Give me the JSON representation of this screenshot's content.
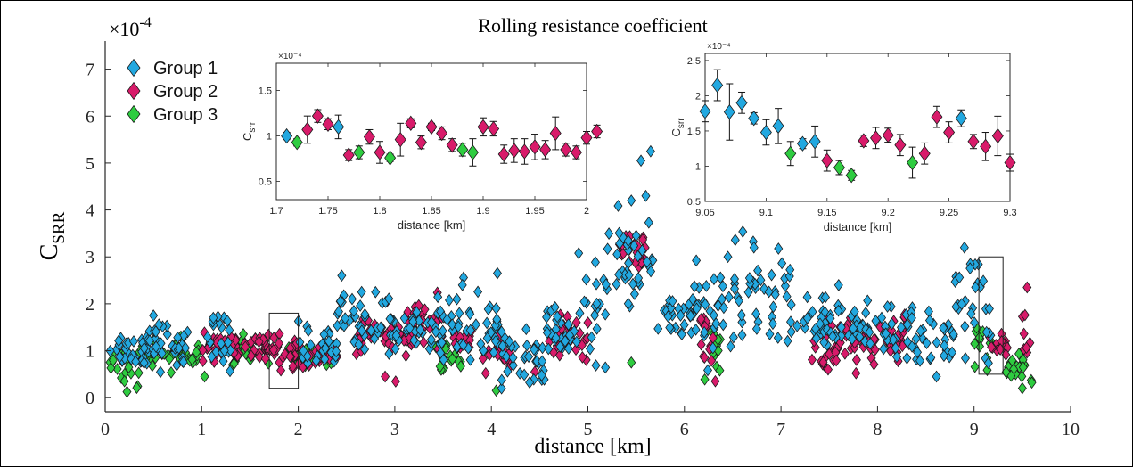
{
  "chart_data": {
    "title": "Rolling resistance coefficient",
    "main": {
      "type": "scatter",
      "xlabel": "distance [km]",
      "ylabel_base": "C",
      "ylabel_sub": "SRR",
      "exponent_prefix": "×10",
      "exponent": "-4",
      "xlim": [
        0,
        10
      ],
      "ylim": [
        -0.3,
        7.6
      ],
      "xticks": [
        "0",
        "1",
        "2",
        "3",
        "4",
        "5",
        "6",
        "7",
        "8",
        "9",
        "10"
      ],
      "yticks": [
        "0",
        "1",
        "2",
        "3",
        "4",
        "5",
        "6",
        "7"
      ],
      "legend": {
        "placement": "top-left",
        "entries": [
          "Group 1",
          "Group 2",
          "Group 3"
        ]
      },
      "zoom_boxes": [
        {
          "x": [
            1.7,
            2.0
          ],
          "y": [
            0.2,
            1.8
          ]
        },
        {
          "x": [
            9.05,
            9.3
          ],
          "y": [
            0.5,
            3.0
          ]
        }
      ],
      "series": [
        {
          "name": "Group 1",
          "color": "#22a8e0",
          "segments": [
            [
              0.05,
              0.45,
              1.05,
              0.18
            ],
            [
              0.4,
              0.9,
              1.15,
              0.25
            ],
            [
              1.0,
              1.3,
              1.2,
              0.28
            ],
            [
              2.0,
              2.4,
              1.1,
              0.25
            ],
            [
              2.4,
              3.0,
              1.6,
              0.3
            ],
            [
              3.0,
              3.6,
              1.5,
              0.3
            ],
            [
              3.6,
              4.1,
              1.5,
              0.4
            ],
            [
              4.1,
              4.6,
              0.9,
              0.25
            ],
            [
              4.5,
              4.9,
              1.3,
              0.3
            ],
            [
              4.9,
              5.2,
              1.9,
              0.6
            ],
            [
              5.2,
              5.7,
              2.8,
              0.4
            ],
            [
              5.7,
              6.1,
              1.8,
              0.2
            ],
            [
              6.1,
              6.5,
              1.9,
              0.5
            ],
            [
              6.5,
              7.1,
              2.2,
              0.5
            ],
            [
              7.1,
              7.5,
              1.6,
              0.3
            ],
            [
              7.5,
              8.4,
              1.5,
              0.3
            ],
            [
              8.4,
              8.8,
              1.2,
              0.25
            ],
            [
              8.8,
              9.1,
              2.1,
              0.5
            ],
            [
              9.1,
              9.2,
              1.5,
              0.3
            ]
          ],
          "extra": [
            [
              5.45,
              4.2
            ],
            [
              5.6,
              4.3
            ],
            [
              5.55,
              5.05
            ],
            [
              5.65,
              5.25
            ],
            [
              5.5,
              3.45
            ],
            [
              2.45,
              2.6
            ],
            [
              2.8,
              2.25
            ],
            [
              3.7,
              2.4
            ],
            [
              4.05,
              1.9
            ],
            [
              0.5,
              1.75
            ],
            [
              1.12,
              1.7
            ],
            [
              8.9,
              3.2
            ],
            [
              6.72,
              3.2
            ],
            [
              6.45,
              3.0
            ]
          ]
        },
        {
          "name": "Group 2",
          "color": "#d81b6a",
          "segments": [
            [
              1.0,
              1.7,
              1.1,
              0.15
            ],
            [
              1.7,
              2.1,
              1.0,
              0.2
            ],
            [
              2.1,
              2.4,
              0.9,
              0.15
            ],
            [
              2.6,
              3.2,
              1.35,
              0.25
            ],
            [
              3.2,
              3.5,
              1.6,
              0.25
            ],
            [
              3.6,
              3.8,
              1.3,
              0.2
            ],
            [
              3.9,
              4.2,
              0.9,
              0.2
            ],
            [
              4.6,
              5.0,
              1.2,
              0.3
            ],
            [
              5.3,
              5.6,
              3.1,
              0.2
            ],
            [
              6.1,
              6.3,
              1.3,
              0.3
            ],
            [
              7.3,
              7.6,
              1.0,
              0.25
            ],
            [
              7.6,
              8.3,
              1.25,
              0.25
            ],
            [
              9.15,
              9.35,
              1.2,
              0.2
            ],
            [
              9.5,
              9.6,
              1.3,
              0.2
            ]
          ],
          "extra": [
            [
              3.2,
              1.8
            ],
            [
              6.32,
              0.35
            ],
            [
              9.55,
              2.35
            ],
            [
              2.9,
              0.45
            ],
            [
              5.0,
              1.6
            ],
            [
              4.45,
              0.55
            ]
          ]
        },
        {
          "name": "Group 3",
          "color": "#2ecc40",
          "segments": [
            [
              0.05,
              0.35,
              0.8,
              0.2
            ],
            [
              0.35,
              1.0,
              0.95,
              0.15
            ],
            [
              1.3,
              1.7,
              1.0,
              0.15
            ],
            [
              1.9,
              2.4,
              0.95,
              0.15
            ],
            [
              3.4,
              3.7,
              0.8,
              0.2
            ],
            [
              6.2,
              6.4,
              0.9,
              0.35
            ],
            [
              9.0,
              9.2,
              1.2,
              0.25
            ],
            [
              9.3,
              9.6,
              0.6,
              0.25
            ]
          ],
          "extra": [
            [
              4.05,
              0.15
            ],
            [
              5.45,
              0.75
            ],
            [
              6.35,
              1.0
            ],
            [
              9.5,
              0.2
            ],
            [
              0.2,
              0.35
            ],
            [
              1.03,
              0.45
            ]
          ]
        }
      ]
    },
    "inset1": {
      "type": "scatter",
      "xlabel": "distance [km]",
      "ylabel_base": "C",
      "ylabel_sub": "srr",
      "exponent": "×10⁻⁴",
      "xlim": [
        1.7,
        2.0
      ],
      "ylim": [
        0.3,
        1.8
      ],
      "xticks": [
        1.7,
        1.75,
        1.8,
        1.85,
        1.9,
        1.95,
        2.0
      ],
      "xtick_labels": [
        "1.7",
        "1.75",
        "1.8",
        "1.85",
        "1.9",
        "1.95",
        "2"
      ],
      "yticks": [
        0.5,
        1.0,
        1.5
      ],
      "ytick_labels": [
        "0.5",
        "1",
        "1.5"
      ],
      "points": [
        {
          "x": 1.71,
          "y": 1.0,
          "e": 0.04,
          "g": 1
        },
        {
          "x": 1.72,
          "y": 0.93,
          "e": 0.04,
          "g": 3
        },
        {
          "x": 1.73,
          "y": 1.07,
          "e": 0.15,
          "g": 2
        },
        {
          "x": 1.74,
          "y": 1.22,
          "e": 0.07,
          "g": 2
        },
        {
          "x": 1.75,
          "y": 1.13,
          "e": 0.06,
          "g": 2
        },
        {
          "x": 1.76,
          "y": 1.1,
          "e": 0.13,
          "g": 1
        },
        {
          "x": 1.77,
          "y": 0.79,
          "e": 0.06,
          "g": 2
        },
        {
          "x": 1.78,
          "y": 0.82,
          "e": 0.07,
          "g": 3
        },
        {
          "x": 1.79,
          "y": 0.99,
          "e": 0.08,
          "g": 2
        },
        {
          "x": 1.8,
          "y": 0.82,
          "e": 0.12,
          "g": 2
        },
        {
          "x": 1.81,
          "y": 0.76,
          "e": 0.04,
          "g": 3
        },
        {
          "x": 1.82,
          "y": 0.96,
          "e": 0.18,
          "g": 2
        },
        {
          "x": 1.83,
          "y": 1.14,
          "e": 0.05,
          "g": 2
        },
        {
          "x": 1.84,
          "y": 0.93,
          "e": 0.07,
          "g": 2
        },
        {
          "x": 1.85,
          "y": 1.1,
          "e": 0.04,
          "g": 2
        },
        {
          "x": 1.86,
          "y": 1.03,
          "e": 0.07,
          "g": 2
        },
        {
          "x": 1.87,
          "y": 0.9,
          "e": 0.07,
          "g": 2
        },
        {
          "x": 1.88,
          "y": 0.85,
          "e": 0.07,
          "g": 3
        },
        {
          "x": 1.89,
          "y": 0.82,
          "e": 0.15,
          "g": 3
        },
        {
          "x": 1.9,
          "y": 1.1,
          "e": 0.1,
          "g": 2
        },
        {
          "x": 1.91,
          "y": 1.08,
          "e": 0.08,
          "g": 2
        },
        {
          "x": 1.92,
          "y": 0.8,
          "e": 0.1,
          "g": 2
        },
        {
          "x": 1.93,
          "y": 0.84,
          "e": 0.13,
          "g": 2
        },
        {
          "x": 1.94,
          "y": 0.83,
          "e": 0.14,
          "g": 2
        },
        {
          "x": 1.95,
          "y": 0.88,
          "e": 0.14,
          "g": 2
        },
        {
          "x": 1.96,
          "y": 0.85,
          "e": 0.1,
          "g": 2
        },
        {
          "x": 1.97,
          "y": 1.03,
          "e": 0.18,
          "g": 2
        },
        {
          "x": 1.98,
          "y": 0.85,
          "e": 0.07,
          "g": 2
        },
        {
          "x": 1.99,
          "y": 0.82,
          "e": 0.07,
          "g": 2
        },
        {
          "x": 2.0,
          "y": 0.98,
          "e": 0.07,
          "g": 2
        },
        {
          "x": 2.01,
          "y": 1.05,
          "e": 0.07,
          "g": 2
        }
      ]
    },
    "inset2": {
      "type": "scatter",
      "xlabel": "distance [km]",
      "ylabel_base": "C",
      "ylabel_sub": "srr",
      "exponent": "×10⁻⁴",
      "xlim": [
        9.05,
        9.3
      ],
      "ylim": [
        0.5,
        2.6
      ],
      "xticks": [
        9.05,
        9.1,
        9.15,
        9.2,
        9.25,
        9.3
      ],
      "xtick_labels": [
        "9.05",
        "9.1",
        "9.15",
        "9.2",
        "9.25",
        "9.3"
      ],
      "yticks": [
        0.5,
        1.0,
        1.5,
        2.0,
        2.5
      ],
      "ytick_labels": [
        "0.5",
        "1",
        "1.5",
        "2",
        "2.5"
      ],
      "points": [
        {
          "x": 9.05,
          "y": 1.78,
          "e": 0.15,
          "g": 1
        },
        {
          "x": 9.06,
          "y": 2.15,
          "e": 0.22,
          "g": 1
        },
        {
          "x": 9.07,
          "y": 1.77,
          "e": 0.4,
          "g": 1
        },
        {
          "x": 9.08,
          "y": 1.9,
          "e": 0.15,
          "g": 1
        },
        {
          "x": 9.09,
          "y": 1.68,
          "e": 0.08,
          "g": 1
        },
        {
          "x": 9.1,
          "y": 1.48,
          "e": 0.18,
          "g": 1
        },
        {
          "x": 9.11,
          "y": 1.57,
          "e": 0.25,
          "g": 1
        },
        {
          "x": 9.12,
          "y": 1.18,
          "e": 0.17,
          "g": 3
        },
        {
          "x": 9.13,
          "y": 1.32,
          "e": 0.07,
          "g": 1
        },
        {
          "x": 9.14,
          "y": 1.35,
          "e": 0.22,
          "g": 1
        },
        {
          "x": 9.15,
          "y": 1.08,
          "e": 0.15,
          "g": 2
        },
        {
          "x": 9.16,
          "y": 0.98,
          "e": 0.1,
          "g": 3
        },
        {
          "x": 9.17,
          "y": 0.87,
          "e": 0.07,
          "g": 3
        },
        {
          "x": 9.18,
          "y": 1.36,
          "e": 0.08,
          "g": 2
        },
        {
          "x": 9.19,
          "y": 1.4,
          "e": 0.15,
          "g": 2
        },
        {
          "x": 9.2,
          "y": 1.44,
          "e": 0.1,
          "g": 2
        },
        {
          "x": 9.21,
          "y": 1.3,
          "e": 0.15,
          "g": 2
        },
        {
          "x": 9.22,
          "y": 1.05,
          "e": 0.22,
          "g": 3
        },
        {
          "x": 9.23,
          "y": 1.18,
          "e": 0.15,
          "g": 2
        },
        {
          "x": 9.24,
          "y": 1.7,
          "e": 0.15,
          "g": 2
        },
        {
          "x": 9.25,
          "y": 1.48,
          "e": 0.15,
          "g": 2
        },
        {
          "x": 9.26,
          "y": 1.68,
          "e": 0.12,
          "g": 1
        },
        {
          "x": 9.27,
          "y": 1.35,
          "e": 0.1,
          "g": 2
        },
        {
          "x": 9.28,
          "y": 1.28,
          "e": 0.2,
          "g": 2
        },
        {
          "x": 9.29,
          "y": 1.43,
          "e": 0.28,
          "g": 2
        },
        {
          "x": 9.3,
          "y": 1.05,
          "e": 0.12,
          "g": 2
        }
      ]
    }
  }
}
